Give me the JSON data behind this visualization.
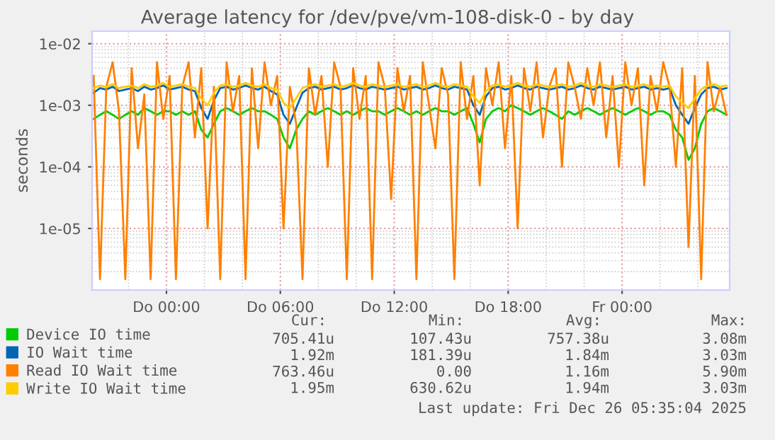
{
  "chart_data": {
    "type": "line",
    "title": "Average latency for /dev/pve/vm-108-disk-0 - by day",
    "ylabel": "seconds",
    "log": "y",
    "grid": true,
    "legend": "bottom",
    "xlim": [
      "2025-12-24T20:05",
      "2025-12-26T05:40"
    ],
    "xticks": [
      {
        "value": "2025-12-25T00:00",
        "label": "Do 00:00"
      },
      {
        "value": "2025-12-25T06:00",
        "label": "Do 06:00"
      },
      {
        "value": "2025-12-25T12:00",
        "label": "Do 12:00"
      },
      {
        "value": "2025-12-25T18:00",
        "label": "Do 18:00"
      },
      {
        "value": "2025-12-26T00:00",
        "label": "Fr 00:00"
      }
    ],
    "ylim": [
      1e-06,
      0.016
    ],
    "yticks": [
      {
        "value": 1e-05,
        "label": "1e-05"
      },
      {
        "value": 0.0001,
        "label": "1e-04"
      },
      {
        "value": 0.001,
        "label": "1e-03"
      },
      {
        "value": 0.01,
        "label": "1e-02"
      }
    ],
    "x": [
      "2025-12-24T20:10",
      "2025-12-24T20:30",
      "2025-12-24T20:50",
      "2025-12-24T21:10",
      "2025-12-24T21:30",
      "2025-12-24T21:50",
      "2025-12-24T22:10",
      "2025-12-24T22:30",
      "2025-12-24T22:50",
      "2025-12-24T23:10",
      "2025-12-24T23:30",
      "2025-12-24T23:50",
      "2025-12-25T00:10",
      "2025-12-25T00:30",
      "2025-12-25T00:50",
      "2025-12-25T01:10",
      "2025-12-25T01:30",
      "2025-12-25T01:50",
      "2025-12-25T02:10",
      "2025-12-25T02:30",
      "2025-12-25T02:50",
      "2025-12-25T03:10",
      "2025-12-25T03:30",
      "2025-12-25T03:50",
      "2025-12-25T04:10",
      "2025-12-25T04:30",
      "2025-12-25T04:50",
      "2025-12-25T05:10",
      "2025-12-25T05:30",
      "2025-12-25T05:50",
      "2025-12-25T06:10",
      "2025-12-25T06:30",
      "2025-12-25T06:50",
      "2025-12-25T07:10",
      "2025-12-25T07:30",
      "2025-12-25T07:50",
      "2025-12-25T08:10",
      "2025-12-25T08:30",
      "2025-12-25T08:50",
      "2025-12-25T09:10",
      "2025-12-25T09:30",
      "2025-12-25T09:50",
      "2025-12-25T10:10",
      "2025-12-25T10:30",
      "2025-12-25T10:50",
      "2025-12-25T11:10",
      "2025-12-25T11:30",
      "2025-12-25T11:50",
      "2025-12-25T12:10",
      "2025-12-25T12:30",
      "2025-12-25T12:50",
      "2025-12-25T13:10",
      "2025-12-25T13:30",
      "2025-12-25T13:50",
      "2025-12-25T14:10",
      "2025-12-25T14:30",
      "2025-12-25T14:50",
      "2025-12-25T15:10",
      "2025-12-25T15:30",
      "2025-12-25T15:50",
      "2025-12-25T16:10",
      "2025-12-25T16:30",
      "2025-12-25T16:50",
      "2025-12-25T17:10",
      "2025-12-25T17:30",
      "2025-12-25T17:50",
      "2025-12-25T18:10",
      "2025-12-25T18:30",
      "2025-12-25T18:50",
      "2025-12-25T19:10",
      "2025-12-25T19:30",
      "2025-12-25T19:50",
      "2025-12-25T20:10",
      "2025-12-25T20:30",
      "2025-12-25T20:50",
      "2025-12-25T21:10",
      "2025-12-25T21:30",
      "2025-12-25T21:50",
      "2025-12-25T22:10",
      "2025-12-25T22:30",
      "2025-12-25T22:50",
      "2025-12-25T23:10",
      "2025-12-25T23:30",
      "2025-12-25T23:50",
      "2025-12-26T00:10",
      "2025-12-26T00:30",
      "2025-12-26T00:50",
      "2025-12-26T01:10",
      "2025-12-26T01:30",
      "2025-12-26T01:50",
      "2025-12-26T02:10",
      "2025-12-26T02:30",
      "2025-12-26T02:50",
      "2025-12-26T03:10",
      "2025-12-26T03:30",
      "2025-12-26T03:50",
      "2025-12-26T04:10",
      "2025-12-26T04:30",
      "2025-12-26T04:50",
      "2025-12-26T05:10",
      "2025-12-26T05:30"
    ],
    "series": [
      {
        "name": "Device IO time",
        "color": "#00cc00",
        "values": [
          0.0006,
          0.0007,
          0.0008,
          0.0007,
          0.0006,
          0.0007,
          0.0008,
          0.0007,
          0.0009,
          0.0008,
          0.0007,
          0.0008,
          0.0008,
          0.0007,
          0.0008,
          0.0007,
          0.0008,
          0.0004,
          0.0003,
          0.0005,
          0.0008,
          0.0009,
          0.0008,
          0.0007,
          0.0008,
          0.0009,
          0.0008,
          0.0008,
          0.0007,
          0.0006,
          0.0003,
          0.0002,
          0.0004,
          0.0006,
          0.0008,
          0.0007,
          0.0008,
          0.0009,
          0.0008,
          0.0007,
          0.0008,
          0.0007,
          0.0008,
          0.0009,
          0.0008,
          0.0008,
          0.0007,
          0.0008,
          0.0009,
          0.0008,
          0.0007,
          0.0008,
          0.0007,
          0.0008,
          0.0009,
          0.0008,
          0.0008,
          0.0007,
          0.0008,
          0.0009,
          0.0005,
          0.00025,
          0.0006,
          0.0008,
          0.0009,
          0.0008,
          0.001,
          0.0009,
          0.0008,
          0.0007,
          0.0008,
          0.0009,
          0.0008,
          0.0007,
          0.0006,
          0.0008,
          0.0007,
          0.0008,
          0.0009,
          0.0008,
          0.0007,
          0.0008,
          0.0009,
          0.0008,
          0.0007,
          0.0008,
          0.0009,
          0.0008,
          0.0007,
          0.0008,
          0.0008,
          0.0007,
          0.0004,
          0.0003,
          0.00013,
          0.0002,
          0.0005,
          0.0008,
          0.0009,
          0.0008,
          0.0007
        ]
      },
      {
        "name": "IO Wait time",
        "color": "#0066b3",
        "values": [
          0.0016,
          0.0019,
          0.0018,
          0.002,
          0.0017,
          0.0018,
          0.0019,
          0.0017,
          0.002,
          0.0018,
          0.0019,
          0.0021,
          0.0018,
          0.0019,
          0.002,
          0.0018,
          0.0017,
          0.0009,
          0.0006,
          0.0012,
          0.0019,
          0.002,
          0.0018,
          0.0019,
          0.0021,
          0.0019,
          0.0018,
          0.002,
          0.0017,
          0.0015,
          0.0007,
          0.0005,
          0.0009,
          0.0016,
          0.0019,
          0.002,
          0.0018,
          0.0019,
          0.002,
          0.0018,
          0.0019,
          0.0021,
          0.0019,
          0.0018,
          0.002,
          0.0019,
          0.0018,
          0.0019,
          0.002,
          0.0018,
          0.0019,
          0.002,
          0.0018,
          0.0019,
          0.0021,
          0.0019,
          0.0018,
          0.002,
          0.0019,
          0.0018,
          0.001,
          0.0007,
          0.0014,
          0.0019,
          0.002,
          0.0018,
          0.0019,
          0.0021,
          0.0019,
          0.0018,
          0.002,
          0.0019,
          0.0018,
          0.0019,
          0.002,
          0.0018,
          0.0019,
          0.0021,
          0.0019,
          0.0018,
          0.002,
          0.0019,
          0.0018,
          0.0019,
          0.002,
          0.0018,
          0.0019,
          0.002,
          0.0018,
          0.0019,
          0.0018,
          0.0019,
          0.001,
          0.0007,
          0.0005,
          0.0009,
          0.0015,
          0.0019,
          0.002,
          0.0018,
          0.0019
        ]
      },
      {
        "name": "Read IO Wait time",
        "color": "#ff8000",
        "values": [
          0.003,
          1.5e-06,
          0.002,
          0.005,
          0.0008,
          1.5e-06,
          0.004,
          0.0002,
          0.0015,
          1.5e-06,
          0.005,
          0.0006,
          0.003,
          1.5e-06,
          0.002,
          0.005,
          0.0003,
          0.004,
          1e-05,
          0.002,
          1.5e-06,
          0.005,
          0.0008,
          0.003,
          1.5e-06,
          0.004,
          0.0002,
          0.005,
          0.001,
          0.003,
          1e-05,
          0.002,
          0.0005,
          1.5e-06,
          0.004,
          0.0007,
          0.003,
          0.0001,
          0.005,
          0.002,
          1.5e-06,
          0.004,
          0.0006,
          0.003,
          1.5e-06,
          0.005,
          0.002,
          3e-05,
          0.004,
          0.0008,
          0.003,
          1.5e-06,
          0.005,
          0.001,
          0.0002,
          0.004,
          0.0015,
          1.5e-06,
          0.005,
          0.0006,
          0.003,
          5e-05,
          0.004,
          0.001,
          0.005,
          0.0002,
          0.003,
          1e-05,
          0.004,
          0.0008,
          0.005,
          0.0003,
          0.002,
          0.004,
          0.0001,
          0.005,
          0.002,
          0.0006,
          0.004,
          0.001,
          0.005,
          0.0003,
          0.003,
          0.0001,
          0.005,
          0.001,
          0.004,
          5e-05,
          0.003,
          0.0008,
          0.005,
          0.002,
          0.0001,
          0.004,
          5e-06,
          0.003,
          1.5e-06,
          0.005,
          0.0008,
          0.002,
          0.0007
        ]
      },
      {
        "name": "Write IO Wait time",
        "color": "#ffcc00",
        "values": [
          0.0019,
          0.0021,
          0.002,
          0.0022,
          0.0019,
          0.002,
          0.0021,
          0.0019,
          0.0022,
          0.002,
          0.0021,
          0.0023,
          0.002,
          0.0021,
          0.0022,
          0.002,
          0.0019,
          0.0013,
          0.001,
          0.0016,
          0.0021,
          0.0022,
          0.002,
          0.0021,
          0.0023,
          0.0021,
          0.002,
          0.0022,
          0.0019,
          0.0018,
          0.0011,
          0.0009,
          0.0013,
          0.0019,
          0.0021,
          0.0022,
          0.002,
          0.0021,
          0.0022,
          0.002,
          0.0021,
          0.0023,
          0.0021,
          0.002,
          0.0022,
          0.0021,
          0.002,
          0.0021,
          0.0022,
          0.002,
          0.0021,
          0.0022,
          0.002,
          0.0021,
          0.0023,
          0.0021,
          0.002,
          0.0022,
          0.0021,
          0.002,
          0.0014,
          0.0011,
          0.0017,
          0.0021,
          0.0022,
          0.002,
          0.0021,
          0.0023,
          0.0021,
          0.002,
          0.0022,
          0.0021,
          0.002,
          0.0021,
          0.0022,
          0.002,
          0.0021,
          0.0023,
          0.0021,
          0.002,
          0.0022,
          0.0021,
          0.002,
          0.0021,
          0.0022,
          0.002,
          0.0021,
          0.0022,
          0.002,
          0.0021,
          0.002,
          0.0021,
          0.0014,
          0.0011,
          0.0009,
          0.0013,
          0.0018,
          0.0021,
          0.0022,
          0.002,
          0.0021
        ]
      }
    ],
    "annotations": [
      "Cur:",
      "Min:",
      "Avg:",
      "Max:",
      "705.41u",
      "107.43u",
      "757.38u",
      "3.08m",
      "1.92m",
      "181.39u",
      "1.84m",
      "3.03m",
      "763.46u",
      "0.00",
      "1.16m",
      "5.90m",
      "1.95m",
      "630.62u",
      "1.94m",
      "3.03m",
      "Last update: Fri Dec 26 05:35:04 2025"
    ]
  }
}
